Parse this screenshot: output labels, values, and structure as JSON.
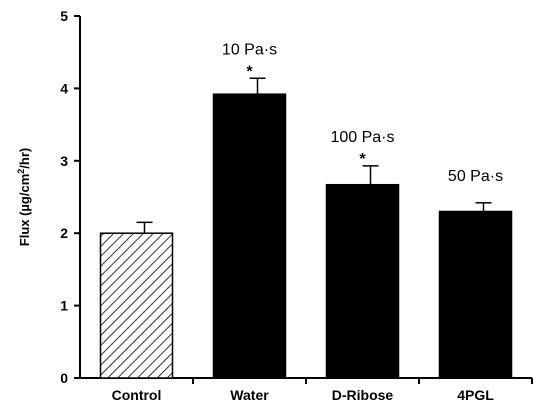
{
  "chart_data": {
    "type": "bar",
    "ylabel_prefix": "Flux (µg/cm",
    "ylabel_sup": "2",
    "ylabel_suffix": "/hr)",
    "xlabel": "",
    "ylim": [
      0,
      5
    ],
    "yticks": [
      "0",
      "1",
      "2",
      "3",
      "4",
      "5"
    ],
    "categories": [
      "Control",
      "Water",
      "D-Ribose",
      "4PGL"
    ],
    "values": [
      2.0,
      3.92,
      2.67,
      2.3
    ],
    "errors": [
      0.15,
      0.22,
      0.26,
      0.12
    ],
    "fills": [
      "hatched",
      "#000000",
      "#000000",
      "#000000"
    ],
    "annotations": [
      "",
      "10 Pa·s",
      "100 Pa·s",
      "50 Pa·s"
    ],
    "significance": [
      "",
      "*",
      "*",
      ""
    ]
  }
}
